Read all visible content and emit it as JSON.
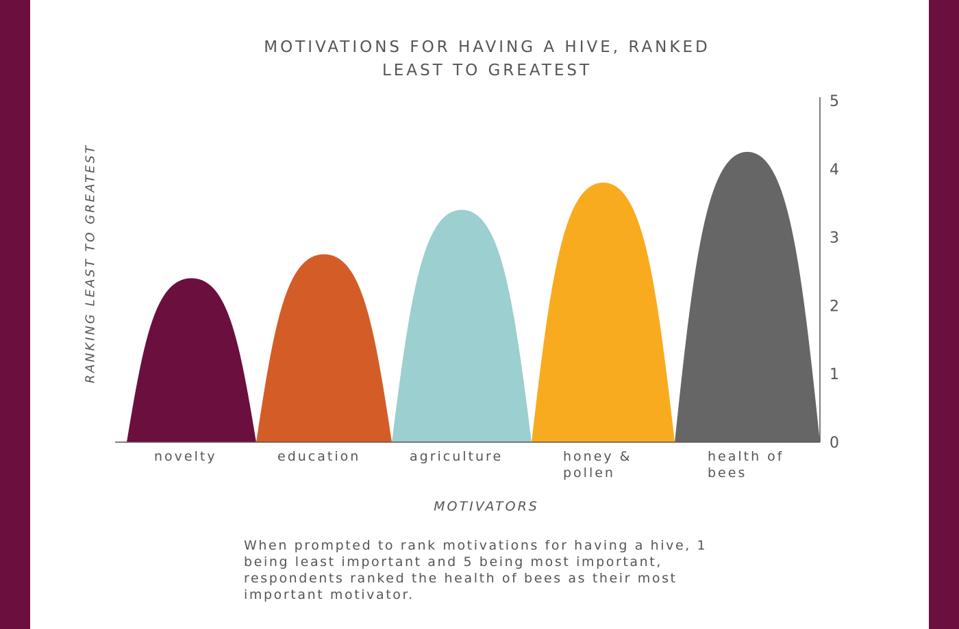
{
  "chart_data": {
    "type": "area",
    "title": [
      "MOTIVATIONS FOR HAVING A HIVE, RANKED",
      "LEAST TO GREATEST"
    ],
    "xlabel": "MOTIVATORS",
    "ylabel": "RANKING LEAST TO GREATEST",
    "ylim": [
      0,
      5
    ],
    "yticks": [
      "0",
      "1",
      "2",
      "3",
      "4",
      "5"
    ],
    "categories": [
      [
        "novelty"
      ],
      [
        "education"
      ],
      [
        "agriculture"
      ],
      [
        "honey &",
        "pollen"
      ],
      [
        "health of",
        "bees"
      ]
    ],
    "values": [
      2.4,
      2.75,
      3.4,
      3.8,
      4.25
    ],
    "colors": [
      "#6b0f3e",
      "#d45d27",
      "#9ccfcf",
      "#f9ab1f",
      "#666667"
    ],
    "grid": false,
    "y_axis_position": "right"
  },
  "caption": "When prompted to rank motivations for having a hive, 1 being least important and 5 being most important, respondents ranked the health of bees as their most important motivator."
}
